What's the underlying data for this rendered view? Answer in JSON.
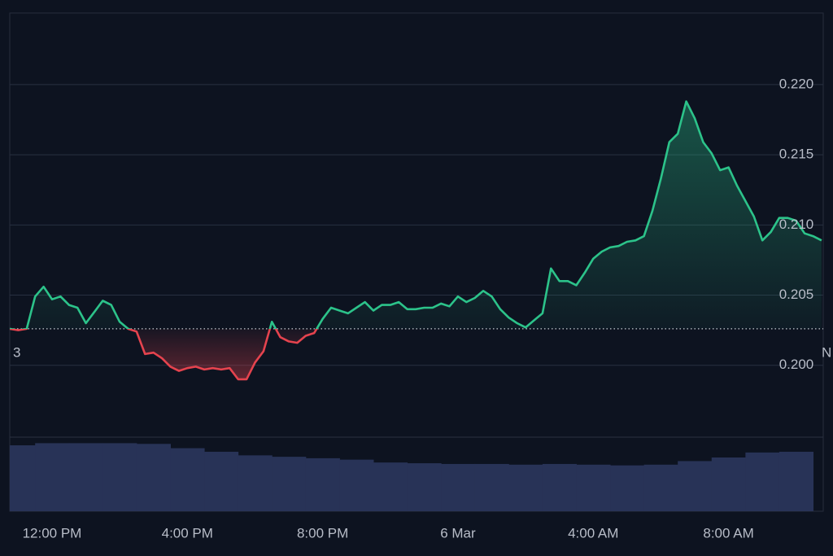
{
  "chart_data": {
    "type": "line",
    "series": [
      {
        "type": "line",
        "color": "#2cc38a",
        "down_color": "#e5434e",
        "x": [
          10.75,
          11,
          11.25,
          11.5,
          11.75,
          12,
          12.25,
          12.5,
          12.75,
          13,
          13.25,
          13.5,
          13.75,
          14,
          14.25,
          14.5,
          14.75,
          15,
          15.25,
          15.5,
          15.75,
          16,
          16.25,
          16.5,
          16.75,
          17,
          17.25,
          17.5,
          17.75,
          18,
          18.25,
          18.5,
          18.75,
          19,
          19.25,
          19.5,
          19.75,
          20,
          20.25,
          20.5,
          20.75,
          21,
          21.25,
          21.5,
          21.75,
          22,
          22.25,
          22.5,
          22.75,
          23,
          23.25,
          23.5,
          23.75,
          24,
          24.25,
          24.5,
          24.75,
          25,
          25.25,
          25.5,
          25.75,
          26,
          26.25,
          26.5,
          26.75,
          27,
          27.25,
          27.5,
          27.75,
          28,
          28.25,
          28.5,
          28.75,
          29,
          29.25,
          29.5,
          29.75,
          30,
          30.25,
          30.5,
          30.75,
          31,
          31.25,
          31.5,
          31.75,
          32,
          32.25,
          32.5,
          32.75,
          33,
          33.25,
          33.5,
          33.75,
          34,
          34.25,
          34.5,
          34.75
        ],
        "values": [
          0.2026,
          0.2025,
          0.2026,
          0.2049,
          0.2056,
          0.2047,
          0.2049,
          0.2043,
          0.2041,
          0.203,
          0.2038,
          0.2046,
          0.2043,
          0.2031,
          0.2026,
          0.2024,
          0.2008,
          0.2009,
          0.2005,
          0.1999,
          0.1996,
          0.1998,
          0.1999,
          0.1997,
          0.1998,
          0.1997,
          0.1998,
          0.199,
          0.199,
          0.2002,
          0.201,
          0.2031,
          0.202,
          0.2017,
          0.2016,
          0.2021,
          0.2023,
          0.2033,
          0.2041,
          0.2039,
          0.2037,
          0.2041,
          0.2045,
          0.2039,
          0.2043,
          0.2043,
          0.2045,
          0.204,
          0.204,
          0.2041,
          0.2041,
          0.2044,
          0.2042,
          0.2049,
          0.2045,
          0.2048,
          0.2053,
          0.2049,
          0.204,
          0.2034,
          0.203,
          0.2027,
          0.2032,
          0.2037,
          0.2069,
          0.206,
          0.206,
          0.2057,
          0.2066,
          0.2076,
          0.2081,
          0.2084,
          0.2085,
          0.2088,
          0.2089,
          0.2092,
          0.211,
          0.2133,
          0.2159,
          0.2165,
          0.2188,
          0.2176,
          0.2159,
          0.2151,
          0.2139,
          0.2141,
          0.2128,
          0.2117,
          0.2106,
          0.2089,
          0.2095,
          0.2105,
          0.2105,
          0.2103,
          0.2094,
          0.2092,
          0.2089
        ]
      },
      {
        "type": "bar",
        "axis": "y2",
        "color": "#283357",
        "x": [
          11,
          12,
          13,
          14,
          15,
          16,
          17,
          18,
          19,
          20,
          21,
          22,
          23,
          24,
          25,
          26,
          27,
          28,
          29,
          30,
          31,
          32,
          33,
          34
        ],
        "values": [
          92,
          95,
          95,
          95,
          94,
          88,
          83,
          78,
          76,
          74,
          72,
          68,
          67,
          66,
          66,
          65,
          66,
          65,
          64,
          65,
          70,
          75,
          82,
          83
        ]
      }
    ],
    "baseline": 0.2026,
    "baseline_labels": [
      "3",
      "N"
    ],
    "xlim": [
      10.75,
      34.8
    ],
    "xticks": [
      {
        "value": 12,
        "label": "12:00 PM"
      },
      {
        "value": 16,
        "label": "4:00 PM"
      },
      {
        "value": 20,
        "label": "8:00 PM"
      },
      {
        "value": 24,
        "label": "6 Mar"
      },
      {
        "value": 28,
        "label": "4:00 AM"
      },
      {
        "value": 32,
        "label": "8:00 AM"
      }
    ],
    "ylim": [
      0.1896,
      0.2251
    ],
    "yticks": [
      {
        "value": 0.2,
        "label": "0.200"
      },
      {
        "value": 0.205,
        "label": "0.205"
      },
      {
        "value": 0.21,
        "label": "0.210"
      },
      {
        "value": 0.215,
        "label": "0.215"
      },
      {
        "value": 0.22,
        "label": "0.220"
      }
    ],
    "y2lim": [
      0,
      100
    ],
    "grid": true
  }
}
